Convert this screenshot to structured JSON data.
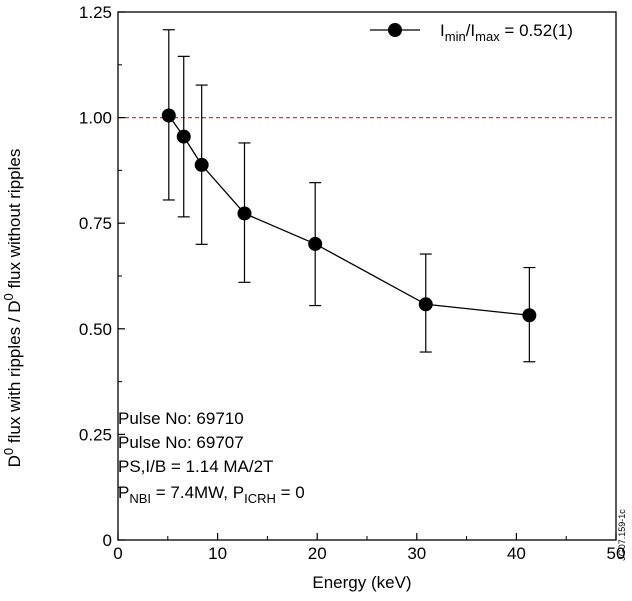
{
  "chart_data": {
    "type": "line",
    "title": "",
    "xlabel": "Energy (keV)",
    "ylabel": "D0 flux with ripples / D0 flux without ripples",
    "xlim": [
      0,
      50
    ],
    "ylim": [
      0,
      1.25
    ],
    "x_ticks": [
      "0",
      "10",
      "20",
      "30",
      "40",
      "50"
    ],
    "y_ticks": [
      "0",
      "0.25",
      "0.50",
      "0.75",
      "1.00",
      "1.25"
    ],
    "x_tick_values": [
      0,
      10,
      20,
      30,
      40,
      50
    ],
    "y_tick_values": [
      0,
      0.25,
      0.5,
      0.75,
      1.0,
      1.25
    ],
    "reference_line": {
      "y": 1.0,
      "style": "dashed",
      "color": "#e8322c"
    },
    "legend": {
      "placement": "top-right",
      "text_main": "I",
      "sub1": "min",
      "sep": "/I",
      "sub2": "max",
      "suffix": " = 0.52(1)"
    },
    "series": [
      {
        "name": "Imin/Imax = 0.52(1)",
        "color": "#000000",
        "x": [
          5.1,
          6.6,
          8.4,
          12.7,
          19.8,
          30.9,
          41.3
        ],
        "y": [
          1.005,
          0.955,
          0.888,
          0.773,
          0.701,
          0.558,
          0.532
        ],
        "err_low": [
          0.805,
          0.765,
          0.7,
          0.61,
          0.555,
          0.445,
          0.422
        ],
        "err_high": [
          1.208,
          1.145,
          1.077,
          0.94,
          0.846,
          0.677,
          0.645
        ]
      }
    ],
    "annotations": [
      "Pulse No: 69710",
      "Pulse No: 69707",
      "PS,I/B = 1.14 MA/2T"
    ],
    "annotation_power": {
      "p1": "P",
      "p1_sub": "NBI",
      "p1_val": " = 7.4MW, P",
      "p2_sub": "ICRH",
      "p2_val": " = 0"
    },
    "ylabel_parts": {
      "a": "D",
      "a_sup": "0",
      "b": " flux with ripples  / D",
      "b_sup": "0",
      "c": " flux without ripples"
    },
    "figure_code": "JG07.159-1c",
    "grid": false
  }
}
